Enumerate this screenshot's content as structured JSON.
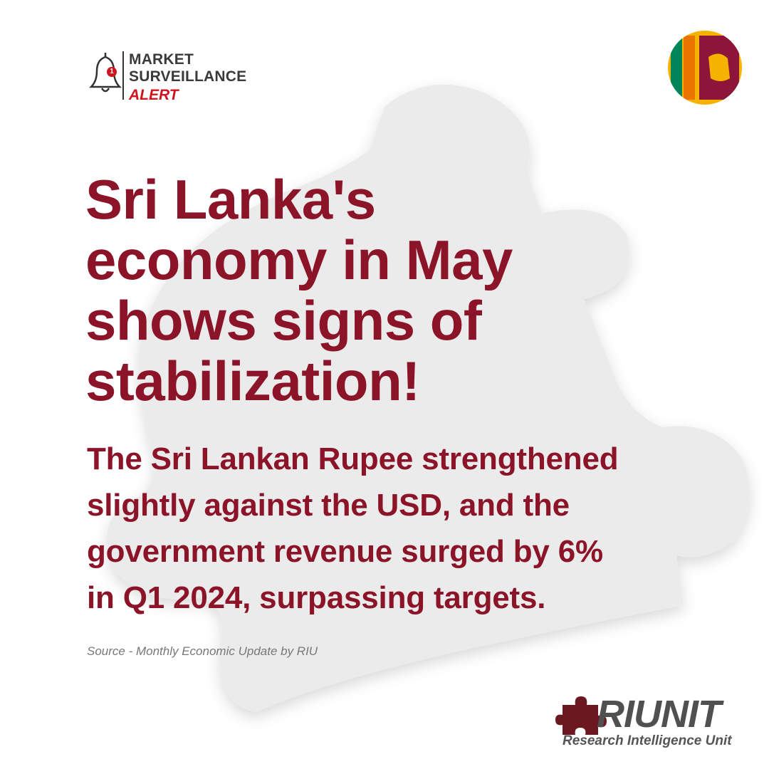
{
  "header": {
    "badge": "1",
    "lines": [
      "MARKET",
      "SURVEILLANCE"
    ],
    "alert": "ALERT"
  },
  "headline": [
    "Sri Lanka's",
    "economy in May",
    "shows signs of",
    "stabilization!"
  ],
  "body": [
    "The Sri Lankan Rupee strengthened",
    "slightly against the USD, and the",
    "government revenue surged by 6%",
    "in Q1 2024, surpassing targets."
  ],
  "source": "Source - Monthly Economic Update by RIU",
  "logo": {
    "name": "RIUNIT",
    "subtitle": "Research Intelligence Unit"
  }
}
